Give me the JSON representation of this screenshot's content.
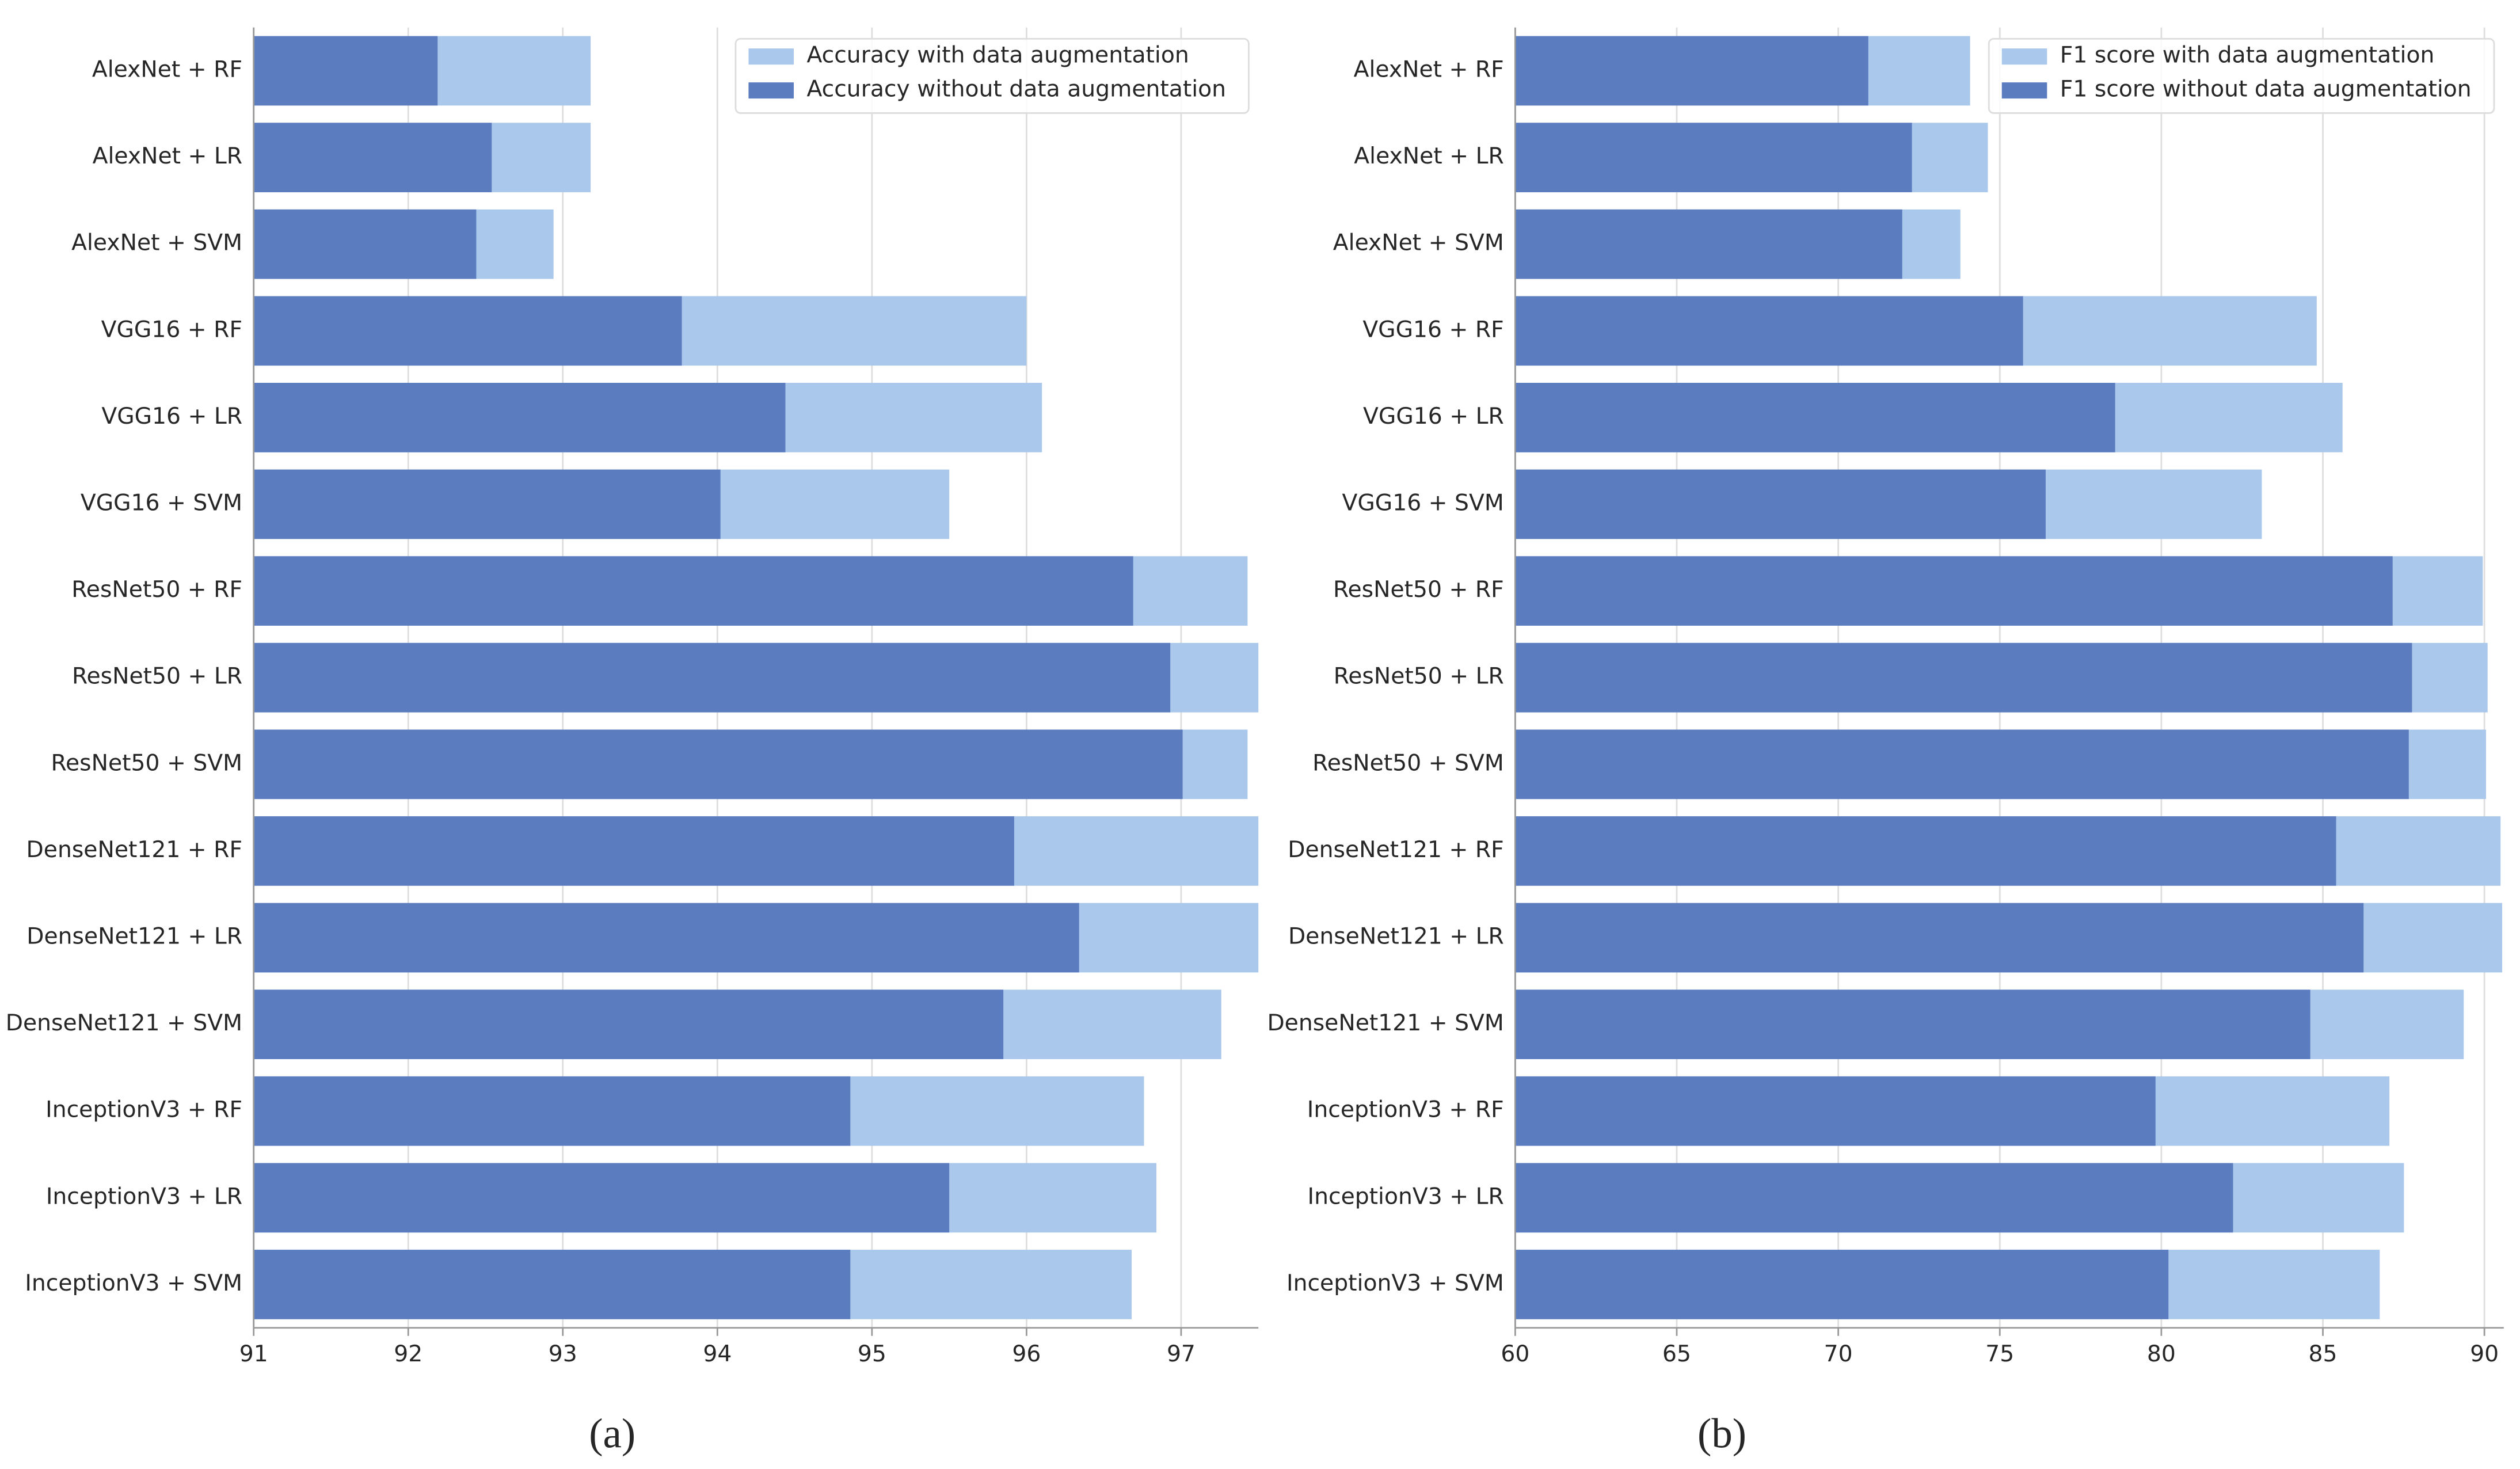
{
  "chart_data": [
    {
      "type": "bar",
      "orientation": "horizontal",
      "caption": "(a)",
      "categories": [
        "AlexNet + RF",
        "AlexNet + LR",
        "AlexNet + SVM",
        "VGG16 + RF",
        "VGG16 + LR",
        "VGG16 + SVM",
        "ResNet50 + RF",
        "ResNet50 + LR",
        "ResNet50 + SVM",
        "DenseNet121 + RF",
        "DenseNet121 + LR",
        "DenseNet121 + SVM",
        "InceptionV3 + RF",
        "InceptionV3 + LR",
        "InceptionV3 + SVM"
      ],
      "series": [
        {
          "name": "Accuracy with data augmentation",
          "color": "#aac8ec",
          "values": [
            93.18,
            93.18,
            92.94,
            96.0,
            96.1,
            95.5,
            97.43,
            97.5,
            97.43,
            97.5,
            97.5,
            97.26,
            96.76,
            96.84,
            96.68
          ]
        },
        {
          "name": "Accuracy without data augmentation",
          "color": "#5b7dc0",
          "values": [
            92.19,
            92.54,
            92.44,
            93.77,
            94.44,
            94.02,
            96.69,
            96.93,
            97.01,
            95.92,
            96.34,
            95.85,
            94.86,
            95.5,
            94.86
          ]
        }
      ],
      "xlim": [
        91,
        97.5
      ],
      "xticks": [
        91,
        92,
        93,
        94,
        95,
        96,
        97
      ],
      "grid": true,
      "legend": "upper right"
    },
    {
      "type": "bar",
      "orientation": "horizontal",
      "caption": "(b)",
      "categories": [
        "AlexNet + RF",
        "AlexNet + LR",
        "AlexNet + SVM",
        "VGG16 + RF",
        "VGG16 + LR",
        "VGG16 + SVM",
        "ResNet50 + RF",
        "ResNet50 + LR",
        "ResNet50 + SVM",
        "DenseNet121 + RF",
        "DenseNet121 + LR",
        "DenseNet121 + SVM",
        "InceptionV3 + RF",
        "InceptionV3 + LR",
        "InceptionV3 + SVM"
      ],
      "series": [
        {
          "name": "F1 score with data augmentation",
          "color": "#aac8ec",
          "values": [
            74.08,
            74.63,
            73.78,
            84.81,
            85.61,
            83.11,
            89.95,
            90.1,
            90.05,
            90.5,
            90.55,
            89.36,
            87.06,
            87.51,
            86.76
          ]
        },
        {
          "name": "F1 score without data augmentation",
          "color": "#5b7dc0",
          "values": [
            70.93,
            72.28,
            71.98,
            75.72,
            78.57,
            76.42,
            87.16,
            87.76,
            87.66,
            85.41,
            86.26,
            84.61,
            79.82,
            82.22,
            80.22
          ]
        }
      ],
      "xlim": [
        60,
        90.6
      ],
      "xticks": [
        60,
        65,
        70,
        75,
        80,
        85,
        90
      ],
      "grid": true,
      "legend": "upper right"
    }
  ]
}
